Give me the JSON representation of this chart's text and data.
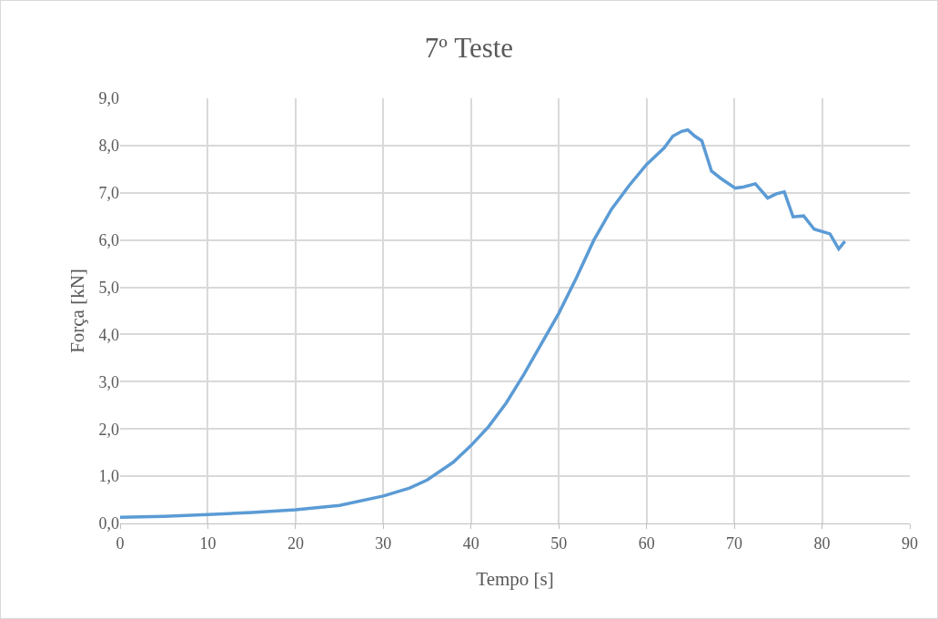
{
  "chart_data": {
    "type": "line",
    "title": "7º Teste",
    "xlabel": "Tempo [s]",
    "ylabel": "Força [kN]",
    "series": [
      {
        "color": "#5b9bd5",
        "x": [
          0,
          5,
          10,
          15,
          20,
          25,
          30,
          33,
          35,
          38,
          40,
          42,
          44,
          46,
          48,
          50,
          52,
          54,
          56,
          58,
          60,
          62,
          63,
          64,
          64.7,
          65.5,
          66.3,
          67.4,
          68.5,
          70.1,
          71,
          72.4,
          73.8,
          74.8,
          75.7,
          76.7,
          77.9,
          79.1,
          80.9,
          81.9,
          82.6
        ],
        "values": [
          0.13,
          0.15,
          0.19,
          0.23,
          0.29,
          0.38,
          0.58,
          0.75,
          0.92,
          1.3,
          1.65,
          2.05,
          2.55,
          3.15,
          3.8,
          4.45,
          5.2,
          6.0,
          6.65,
          7.15,
          7.6,
          7.95,
          8.2,
          8.3,
          8.33,
          8.2,
          8.1,
          7.46,
          7.3,
          7.1,
          7.12,
          7.19,
          6.89,
          6.98,
          7.02,
          6.49,
          6.51,
          6.23,
          6.13,
          5.81,
          5.97
        ]
      }
    ],
    "xlim": [
      0,
      90
    ],
    "xticks": [
      0,
      10,
      20,
      30,
      40,
      50,
      60,
      70,
      80,
      90
    ],
    "ylim": [
      0,
      9
    ],
    "yticks": [
      {
        "value": 0,
        "label": "0,0"
      },
      {
        "value": 1,
        "label": "1,0"
      },
      {
        "value": 2,
        "label": "2,0"
      },
      {
        "value": 3,
        "label": "3,0"
      },
      {
        "value": 4,
        "label": "4,0"
      },
      {
        "value": 5,
        "label": "5,0"
      },
      {
        "value": 6,
        "label": "6,0"
      },
      {
        "value": 7,
        "label": "7,0"
      },
      {
        "value": 8,
        "label": "8,0"
      },
      {
        "value": 9,
        "label": "9,0"
      }
    ],
    "grid": true,
    "marker": "none",
    "line_style": "solid"
  }
}
